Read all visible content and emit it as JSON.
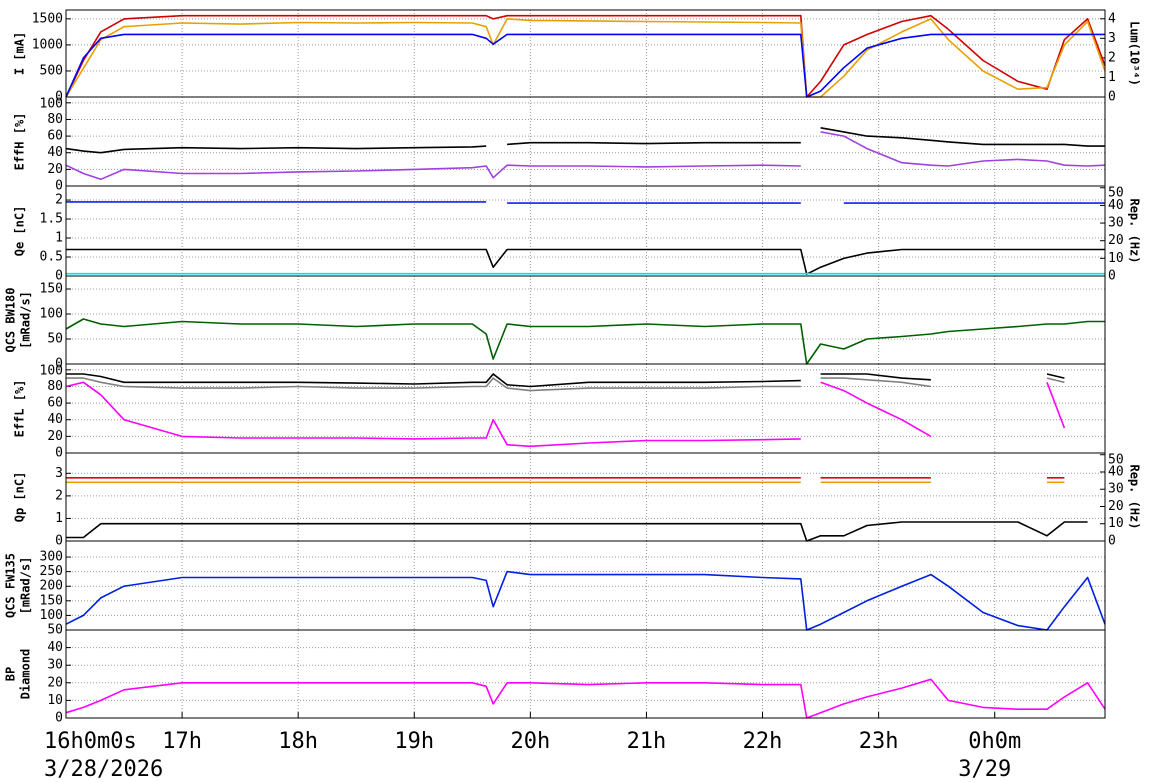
{
  "chart_data": {
    "type": "line",
    "xlim": [
      16,
      24.95
    ],
    "xticks": [
      {
        "value": 16,
        "label": "16h0m0s"
      },
      {
        "value": 17,
        "label": "17h"
      },
      {
        "value": 18,
        "label": "18h"
      },
      {
        "value": 19,
        "label": "19h"
      },
      {
        "value": 20,
        "label": "20h"
      },
      {
        "value": 21,
        "label": "21h"
      },
      {
        "value": 22,
        "label": "22h"
      },
      {
        "value": 23,
        "label": "23h"
      },
      {
        "value": 24,
        "label": "0h0m"
      }
    ],
    "date_labels": [
      "3/28/2026",
      "3/29"
    ],
    "grid": true,
    "x": [
      16.0,
      16.15,
      16.3,
      16.5,
      17.0,
      17.5,
      18.0,
      18.5,
      19.0,
      19.5,
      19.62,
      19.68,
      19.8,
      20.0,
      20.5,
      21.0,
      21.5,
      22.0,
      22.33,
      22.38,
      22.5,
      22.7,
      22.9,
      23.2,
      23.45,
      23.6,
      23.9,
      24.2,
      24.45,
      24.6,
      24.8,
      24.95
    ],
    "panels": [
      {
        "ylabel": [
          "I [mA]"
        ],
        "y2label": [
          "Lum(10³⁴)"
        ],
        "ylim": [
          0,
          1670
        ],
        "yticks": [
          0,
          500,
          1000,
          1500
        ],
        "y2lim": [
          0,
          4.45
        ],
        "y2ticks": [
          0,
          1,
          2,
          3,
          4
        ],
        "series": [
          {
            "color": "#d00000",
            "values": [
              0,
              700,
              1250,
              1500,
              1560,
              1560,
              1560,
              1560,
              1560,
              1560,
              1560,
              1500,
              1560,
              1560,
              1560,
              1560,
              1560,
              1560,
              1560,
              0,
              300,
              1000,
              1200,
              1450,
              1560,
              1300,
              700,
              300,
              150,
              1100,
              1500,
              600
            ]
          },
          {
            "color": "#e8a000",
            "values": [
              0,
              550,
              1100,
              1350,
              1420,
              1400,
              1430,
              1420,
              1430,
              1420,
              1350,
              1000,
              1500,
              1470,
              1460,
              1450,
              1440,
              1430,
              1420,
              0,
              0,
              400,
              900,
              1250,
              1500,
              1100,
              500,
              150,
              180,
              1000,
              1450,
              500
            ]
          },
          {
            "color": "#0000ff",
            "axis": "y2",
            "values": [
              0,
              2.0,
              3.0,
              3.2,
              3.2,
              3.2,
              3.2,
              3.2,
              3.2,
              3.2,
              3.0,
              2.7,
              3.2,
              3.2,
              3.2,
              3.2,
              3.2,
              3.2,
              3.2,
              0,
              0.3,
              1.5,
              2.5,
              3.0,
              3.2,
              3.2,
              3.2,
              3.2,
              3.2,
              3.2,
              3.2,
              3.2
            ]
          }
        ]
      },
      {
        "ylabel": [
          "EffH [%]"
        ],
        "ylim": [
          0,
          107
        ],
        "yticks": [
          0,
          20,
          40,
          60,
          80,
          100
        ],
        "series": [
          {
            "color": "#000000",
            "values": [
              45,
              42,
              40,
              44,
              46,
              45,
              46,
              45,
              46,
              47,
              48,
              null,
              50,
              52,
              52,
              51,
              52,
              52,
              52,
              null,
              70,
              65,
              60,
              58,
              55,
              53,
              50,
              50,
              50,
              50,
              48,
              48
            ]
          },
          {
            "color": "#a040e0",
            "values": [
              25,
              15,
              8,
              20,
              15,
              15,
              17,
              18,
              20,
              22,
              24,
              10,
              25,
              24,
              24,
              23,
              24,
              25,
              24,
              null,
              65,
              60,
              45,
              28,
              25,
              24,
              30,
              32,
              30,
              25,
              24,
              25
            ]
          }
        ]
      },
      {
        "ylabel": [
          "Qe [nC]"
        ],
        "y2label": [
          "Rep. (Hz)"
        ],
        "ylim": [
          0,
          2.37
        ],
        "yticks": [
          0,
          0.5,
          1,
          1.5,
          2
        ],
        "y2lim": [
          0,
          51
        ],
        "y2ticks": [
          0,
          10,
          20,
          30,
          40,
          50
        ],
        "series": [
          {
            "color": "#1020f0",
            "values": [
              1.95,
              1.95,
              1.95,
              1.95,
              1.95,
              1.95,
              1.95,
              1.95,
              1.95,
              1.95,
              1.95,
              null,
              1.92,
              1.92,
              1.92,
              1.92,
              1.92,
              1.92,
              1.92,
              null,
              null,
              1.92,
              1.92,
              1.92,
              1.92,
              1.92,
              1.92,
              1.92,
              1.92,
              1.92,
              1.92,
              1.92
            ]
          },
          {
            "color": "#000000",
            "axis": "y2",
            "values": [
              15,
              15,
              15,
              15,
              15,
              15,
              15,
              15,
              15,
              15,
              15,
              5,
              15,
              15,
              15,
              15,
              15,
              15,
              15,
              1,
              5,
              10,
              13,
              15,
              15,
              15,
              15,
              15,
              15,
              15,
              15,
              15
            ]
          },
          {
            "color": "#00e0e0",
            "values": [
              0.06,
              0.06,
              0.06,
              0.06,
              0.06,
              0.06,
              0.06,
              0.06,
              0.06,
              0.06,
              0.06,
              0.06,
              0.06,
              0.06,
              0.06,
              0.06,
              0.06,
              0.06,
              0.06,
              0.06,
              0.06,
              0.06,
              0.06,
              0.06,
              0.06,
              0.06,
              0.06,
              0.06,
              0.06,
              0.06,
              0.06,
              0.06
            ]
          }
        ]
      },
      {
        "ylabel": [
          "QCS BW180",
          "[mRad/s]"
        ],
        "ylim": [
          0,
          176
        ],
        "yticks": [
          0,
          50,
          100,
          150
        ],
        "series": [
          {
            "color": "#006000",
            "values": [
              70,
              90,
              80,
              75,
              85,
              80,
              80,
              75,
              80,
              80,
              60,
              10,
              80,
              75,
              75,
              80,
              75,
              80,
              80,
              0,
              40,
              30,
              50,
              55,
              60,
              65,
              70,
              75,
              80,
              80,
              85,
              85
            ]
          }
        ]
      },
      {
        "ylabel": [
          "EffL [%]"
        ],
        "ylim": [
          0,
          107
        ],
        "yticks": [
          0,
          20,
          40,
          60,
          80,
          100
        ],
        "series": [
          {
            "color": "#000000",
            "values": [
              95,
              95,
              92,
              85,
              85,
              85,
              85,
              84,
              83,
              85,
              85,
              95,
              82,
              80,
              85,
              85,
              85,
              86,
              87,
              null,
              95,
              95,
              95,
              90,
              88,
              null,
              null,
              null,
              95,
              90,
              null,
              null
            ]
          },
          {
            "color": "#808080",
            "values": [
              90,
              90,
              85,
              80,
              78,
              78,
              80,
              78,
              78,
              80,
              80,
              90,
              78,
              75,
              78,
              78,
              78,
              80,
              80,
              null,
              90,
              90,
              88,
              85,
              80,
              null,
              null,
              null,
              90,
              85,
              null,
              null
            ]
          },
          {
            "color": "#ff00ff",
            "values": [
              80,
              85,
              70,
              40,
              20,
              18,
              18,
              18,
              17,
              18,
              18,
              40,
              10,
              8,
              12,
              15,
              15,
              16,
              17,
              null,
              85,
              75,
              60,
              40,
              20,
              null,
              null,
              null,
              85,
              30,
              null,
              null
            ]
          }
        ]
      },
      {
        "ylabel": [
          "Qp [nC]"
        ],
        "y2label": [
          "Rep. (Hz)"
        ],
        "ylim": [
          0,
          3.9
        ],
        "yticks": [
          0,
          1,
          2,
          3
        ],
        "y2lim": [
          0,
          51
        ],
        "y2ticks": [
          0,
          10,
          20,
          30,
          40,
          50
        ],
        "series": [
          {
            "color": "#e8a000",
            "values": [
              2.6,
              2.6,
              2.6,
              2.6,
              2.6,
              2.6,
              2.6,
              2.6,
              2.6,
              2.6,
              2.6,
              2.6,
              2.6,
              2.6,
              2.6,
              2.6,
              2.6,
              2.6,
              2.6,
              null,
              2.6,
              2.6,
              2.6,
              2.6,
              2.6,
              null,
              null,
              null,
              2.6,
              2.6,
              null,
              null
            ]
          },
          {
            "color": "#e00000",
            "values": [
              2.8,
              2.8,
              2.8,
              2.8,
              2.8,
              2.8,
              2.8,
              2.8,
              2.8,
              2.8,
              2.8,
              2.8,
              2.8,
              2.8,
              2.8,
              2.8,
              2.8,
              2.8,
              2.8,
              null,
              2.8,
              2.8,
              2.8,
              2.8,
              2.8,
              null,
              null,
              null,
              2.8,
              2.8,
              null,
              null
            ]
          },
          {
            "color": "#000000",
            "axis": "y2",
            "values": [
              2,
              2,
              10,
              10,
              10,
              10,
              10,
              10,
              10,
              10,
              10,
              10,
              10,
              10,
              10,
              10,
              10,
              10,
              10,
              0,
              3,
              3,
              9,
              11,
              11,
              11,
              11,
              11,
              3,
              11,
              11,
              null
            ]
          }
        ]
      },
      {
        "ylabel": [
          "QCS FW135",
          "[mRad/s]"
        ],
        "ylim": [
          50,
          355
        ],
        "yticks": [
          50,
          100,
          150,
          200,
          250,
          300
        ],
        "series": [
          {
            "color": "#0020e0",
            "values": [
              70,
              100,
              160,
              200,
              230,
              230,
              230,
              230,
              230,
              230,
              220,
              130,
              250,
              240,
              240,
              240,
              240,
              230,
              225,
              50,
              70,
              110,
              150,
              200,
              240,
              200,
              110,
              65,
              50,
              130,
              230,
              70
            ]
          }
        ]
      },
      {
        "ylabel": [
          "BP",
          "Diamond"
        ],
        "ylim": [
          0,
          50
        ],
        "yticks": [
          0,
          10,
          20,
          30,
          40
        ],
        "series": [
          {
            "color": "#ff00ff",
            "values": [
              3,
              6,
              10,
              16,
              20,
              20,
              20,
              20,
              20,
              20,
              18,
              8,
              20,
              20,
              19,
              20,
              20,
              19,
              19,
              0,
              3,
              8,
              12,
              17,
              22,
              10,
              6,
              5,
              5,
              12,
              20,
              5
            ]
          }
        ]
      }
    ]
  }
}
